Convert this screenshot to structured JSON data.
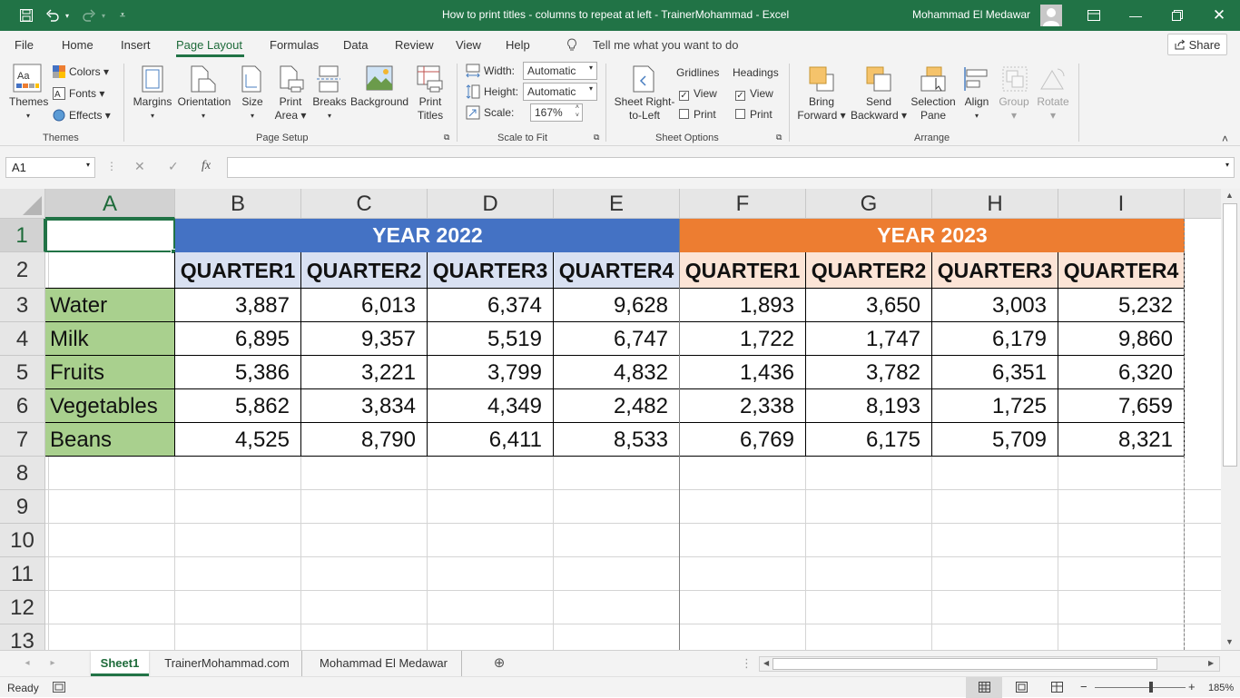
{
  "window": {
    "title": "How to print titles - columns to repeat at left - TrainerMohammad  -  Excel",
    "user": "Mohammad El Medawar"
  },
  "quick_access": {
    "save_icon": "save-icon",
    "undo_icon": "undo-icon",
    "redo_icon": "redo-icon"
  },
  "menu": {
    "tabs": [
      "File",
      "Home",
      "Insert",
      "Page Layout",
      "Formulas",
      "Data",
      "Review",
      "View",
      "Help"
    ],
    "active": "Page Layout",
    "tell_me": "Tell me what you want to do",
    "share": "Share"
  },
  "ribbon": {
    "themes_group": {
      "themes": "Themes",
      "colors": "Colors",
      "fonts": "Fonts",
      "effects": "Effects",
      "label": "Themes"
    },
    "page_setup": {
      "margins": "Margins",
      "orientation": "Orientation",
      "size": "Size",
      "print_area_1": "Print",
      "print_area_2": "Area",
      "breaks": "Breaks",
      "background": "Background",
      "print_titles_1": "Print",
      "print_titles_2": "Titles",
      "label": "Page Setup"
    },
    "scale_to_fit": {
      "width_label": "Width:",
      "width_value": "Automatic",
      "height_label": "Height:",
      "height_value": "Automatic",
      "scale_label": "Scale:",
      "scale_value": "167%",
      "label": "Scale to Fit"
    },
    "sheet_options": {
      "sheet_rtl_1": "Sheet Right-",
      "sheet_rtl_2": "to-Left",
      "gridlines": "Gridlines",
      "headings": "Headings",
      "view": "View",
      "print": "Print",
      "gridlines_view": true,
      "gridlines_print": false,
      "headings_view": true,
      "headings_print": false,
      "label": "Sheet Options"
    },
    "arrange": {
      "bring_forward_1": "Bring",
      "bring_forward_2": "Forward",
      "send_backward_1": "Send",
      "send_backward_2": "Backward",
      "selection_pane_1": "Selection",
      "selection_pane_2": "Pane",
      "align": "Align",
      "group": "Group",
      "rotate": "Rotate",
      "label": "Arrange"
    }
  },
  "formula_bar": {
    "name_box": "A1",
    "fx": "fx",
    "value": ""
  },
  "grid": {
    "columns": [
      "A",
      "B",
      "C",
      "D",
      "E",
      "F",
      "G",
      "H",
      "I"
    ],
    "rows": [
      "1",
      "2",
      "3",
      "4",
      "5",
      "6",
      "7",
      "8",
      "9",
      "10",
      "11",
      "12",
      "13"
    ],
    "year1": "YEAR 2022",
    "year2": "YEAR 2023",
    "quarters": [
      "QUARTER1",
      "QUARTER2",
      "QUARTER3",
      "QUARTER4",
      "QUARTER1",
      "QUARTER2",
      "QUARTER3",
      "QUARTER4"
    ],
    "data": [
      {
        "label": "Water",
        "values": [
          "3,887",
          "6,013",
          "6,374",
          "9,628",
          "1,893",
          "3,650",
          "3,003",
          "5,232"
        ]
      },
      {
        "label": "Milk",
        "values": [
          "6,895",
          "9,357",
          "5,519",
          "6,747",
          "1,722",
          "1,747",
          "6,179",
          "9,860"
        ]
      },
      {
        "label": "Fruits",
        "values": [
          "5,386",
          "3,221",
          "3,799",
          "4,832",
          "1,436",
          "3,782",
          "6,351",
          "6,320"
        ]
      },
      {
        "label": "Vegetables",
        "values": [
          "5,862",
          "3,834",
          "4,349",
          "2,482",
          "2,338",
          "8,193",
          "1,725",
          "7,659"
        ]
      },
      {
        "label": "Beans",
        "values": [
          "4,525",
          "8,790",
          "6,411",
          "8,533",
          "6,769",
          "6,175",
          "5,709",
          "8,321"
        ]
      }
    ],
    "colors": {
      "year2022": "#4472c4",
      "year2023": "#ed7d31",
      "labels": "#a9d08e",
      "q2022": "#d9e1f2",
      "q2023": "#fce4d6"
    }
  },
  "sheets": [
    "Sheet1",
    "TrainerMohammad.com",
    "Mohammad El Medawar"
  ],
  "active_sheet": "Sheet1",
  "status": {
    "ready": "Ready",
    "zoom": "185%"
  }
}
